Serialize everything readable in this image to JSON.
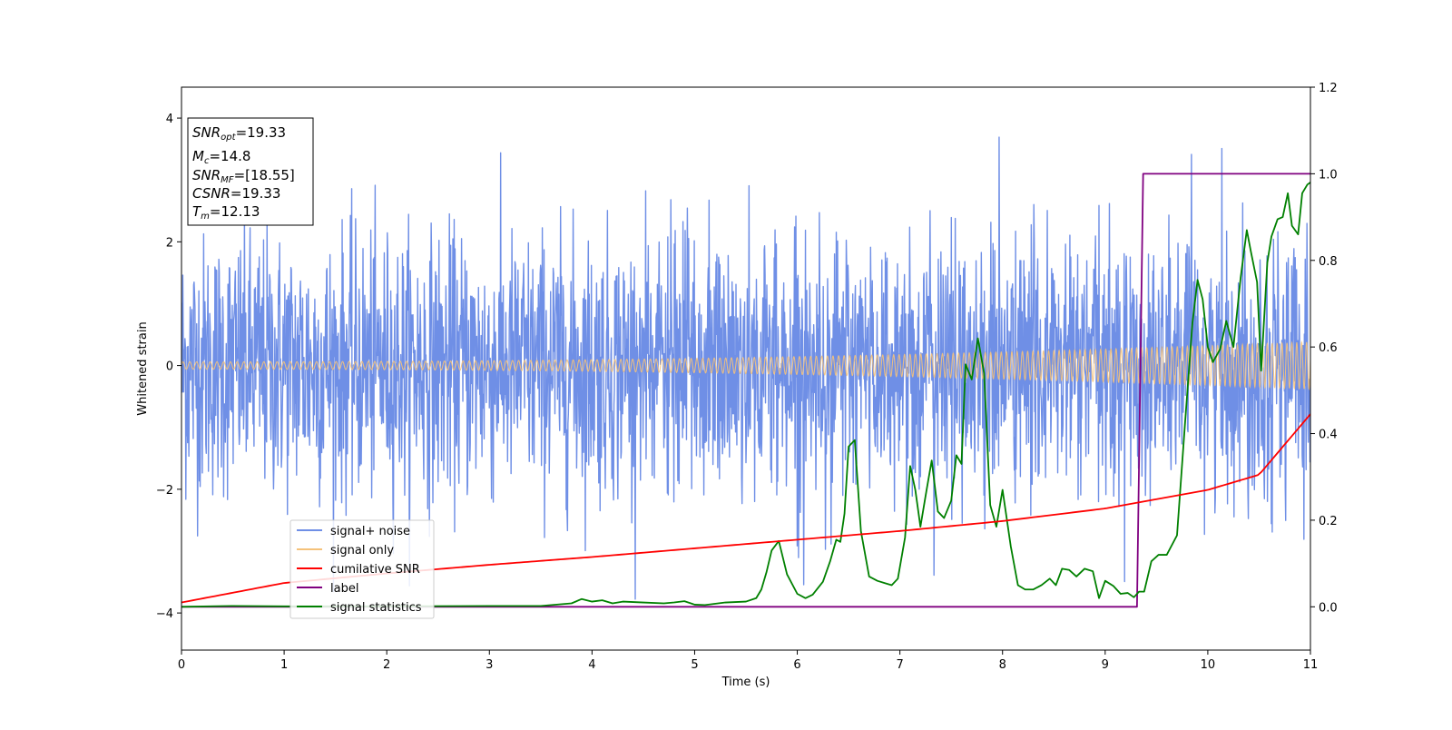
{
  "chart_data": {
    "type": "line",
    "xlabel": "Time (s)",
    "ylabel": "Whitened strain",
    "xlim": [
      0,
      11
    ],
    "ylim": [
      -4.6,
      4.5
    ],
    "y2lim": [
      -0.1,
      1.2
    ],
    "xticks": [
      "0",
      "1",
      "2",
      "3",
      "4",
      "5",
      "6",
      "7",
      "8",
      "9",
      "10",
      "11"
    ],
    "yticks": [
      "−4",
      "−2",
      "0",
      "2",
      "4"
    ],
    "y2ticks": [
      "0.0",
      "0.2",
      "0.4",
      "0.6",
      "0.8",
      "1.0",
      "1.2"
    ],
    "annotation": {
      "snr_opt": {
        "sym": "SNR",
        "sub": "opt",
        "value": "=19.33"
      },
      "mc": {
        "sym": "M",
        "sub": "c",
        "value": "=14.8"
      },
      "snr_mf": {
        "sym": "SNR",
        "sub": "MF",
        "value": "=[18.55]"
      },
      "csnr": {
        "sym": "CSNR",
        "sub": "",
        "value": "=19.33"
      },
      "tm": {
        "sym": "T",
        "sub": "m",
        "value": "=12.13"
      }
    },
    "legend_position": "lower-left",
    "series": [
      {
        "name": "signal+ noise",
        "color": "#6f8fe6",
        "axis": "left",
        "kind": "noise",
        "mean": 0.0,
        "std": 1.05,
        "peak_max": 4.05,
        "peak_min": -3.9
      },
      {
        "name": "signal only",
        "color": "#f5c27a",
        "axis": "left",
        "kind": "chirp",
        "amplitude_start": 0.06,
        "amplitude_end": 0.38
      },
      {
        "name": "cumilative SNR",
        "color": "#ff0000",
        "axis": "right",
        "x": [
          0,
          1,
          2,
          3,
          4,
          5,
          6,
          7,
          8,
          9,
          10,
          10.5,
          11
        ],
        "y": [
          0.01,
          0.055,
          0.077,
          0.097,
          0.115,
          0.135,
          0.155,
          0.175,
          0.198,
          0.227,
          0.27,
          0.305,
          0.445
        ]
      },
      {
        "name": "label",
        "color": "#800080",
        "axis": "right",
        "x": [
          0,
          9.31,
          9.37,
          11
        ],
        "y": [
          0.0,
          0.0,
          1.0,
          1.0
        ]
      },
      {
        "name": "signal statistics",
        "color": "#008000",
        "axis": "right",
        "x": [
          0,
          0.5,
          1,
          2,
          3,
          3.5,
          3.8,
          3.9,
          4.0,
          4.1,
          4.2,
          4.3,
          4.5,
          4.7,
          4.8,
          4.9,
          5.0,
          5.1,
          5.3,
          5.5,
          5.6,
          5.65,
          5.7,
          5.75,
          5.82,
          5.9,
          6.0,
          6.08,
          6.15,
          6.25,
          6.32,
          6.38,
          6.42,
          6.46,
          6.5,
          6.56,
          6.62,
          6.7,
          6.78,
          6.85,
          6.92,
          6.98,
          7.05,
          7.1,
          7.15,
          7.2,
          7.26,
          7.31,
          7.37,
          7.43,
          7.5,
          7.55,
          7.6,
          7.64,
          7.7,
          7.76,
          7.82,
          7.88,
          7.94,
          8.0,
          8.08,
          8.15,
          8.22,
          8.3,
          8.38,
          8.46,
          8.52,
          8.58,
          8.65,
          8.72,
          8.8,
          8.88,
          8.94,
          9.0,
          9.08,
          9.15,
          9.22,
          9.28,
          9.33,
          9.38,
          9.45,
          9.52,
          9.6,
          9.7,
          9.78,
          9.85,
          9.9,
          9.95,
          10.0,
          10.05,
          10.12,
          10.18,
          10.25,
          10.32,
          10.38,
          10.42,
          10.48,
          10.52,
          10.58,
          10.62,
          10.68,
          10.73,
          10.78,
          10.82,
          10.88,
          10.92,
          10.97,
          11.0
        ],
        "y": [
          0.0,
          0.002,
          0.001,
          0.001,
          0.002,
          0.002,
          0.008,
          0.018,
          0.012,
          0.015,
          0.008,
          0.012,
          0.01,
          0.008,
          0.01,
          0.013,
          0.005,
          0.004,
          0.01,
          0.012,
          0.02,
          0.04,
          0.08,
          0.13,
          0.152,
          0.075,
          0.03,
          0.02,
          0.028,
          0.058,
          0.105,
          0.155,
          0.15,
          0.215,
          0.37,
          0.385,
          0.175,
          0.07,
          0.06,
          0.055,
          0.05,
          0.065,
          0.16,
          0.325,
          0.27,
          0.185,
          0.27,
          0.338,
          0.22,
          0.205,
          0.245,
          0.35,
          0.33,
          0.56,
          0.525,
          0.62,
          0.54,
          0.235,
          0.185,
          0.27,
          0.14,
          0.05,
          0.04,
          0.04,
          0.05,
          0.065,
          0.05,
          0.088,
          0.085,
          0.07,
          0.088,
          0.082,
          0.02,
          0.06,
          0.048,
          0.03,
          0.032,
          0.022,
          0.035,
          0.035,
          0.105,
          0.12,
          0.12,
          0.165,
          0.43,
          0.655,
          0.755,
          0.71,
          0.6,
          0.565,
          0.595,
          0.66,
          0.6,
          0.76,
          0.87,
          0.82,
          0.75,
          0.545,
          0.795,
          0.855,
          0.895,
          0.9,
          0.955,
          0.88,
          0.86,
          0.955,
          0.975,
          0.98
        ]
      }
    ]
  }
}
